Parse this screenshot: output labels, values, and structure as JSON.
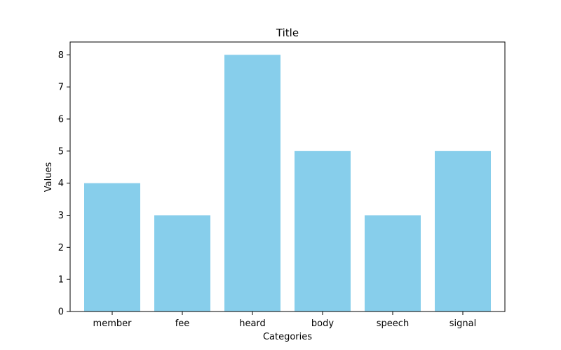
{
  "chart_data": {
    "type": "bar",
    "title": "Title",
    "xlabel": "Categories",
    "ylabel": "Values",
    "categories": [
      "member",
      "fee",
      "heard",
      "body",
      "speech",
      "signal"
    ],
    "values": [
      4,
      3,
      8,
      5,
      3,
      5
    ],
    "ylim": [
      0,
      8.4
    ],
    "yticks": [
      "0",
      "1",
      "2",
      "3",
      "4",
      "5",
      "6",
      "7",
      "8"
    ],
    "grid": false,
    "legend": "none",
    "bar_color": "#87CEEB"
  }
}
